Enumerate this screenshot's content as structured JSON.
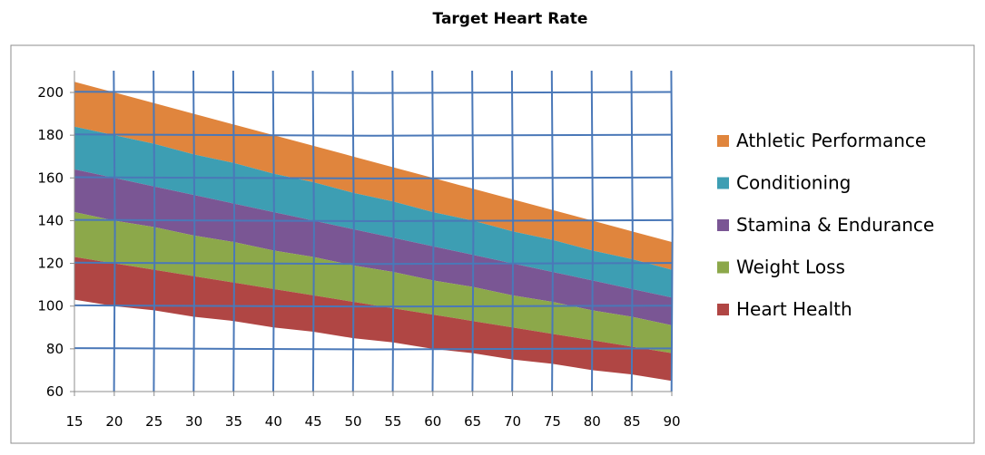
{
  "chart_data": {
    "type": "area",
    "title": "Target Heart Rate",
    "xlabel": "",
    "ylabel": "",
    "x": [
      15,
      20,
      25,
      30,
      35,
      40,
      45,
      50,
      55,
      60,
      65,
      70,
      75,
      80,
      85,
      90
    ],
    "xlim": [
      15,
      90
    ],
    "ylim": [
      60,
      210
    ],
    "yticks": [
      60,
      80,
      100,
      120,
      140,
      160,
      180,
      200
    ],
    "grid": true,
    "legend_position": "right",
    "bands": [
      {
        "name": "Athletic Performance",
        "color": "#e0853d",
        "lower": [
          184,
          180,
          176,
          171,
          167,
          162,
          158,
          153,
          149,
          144,
          140,
          135,
          131,
          126,
          122,
          117
        ],
        "upper": [
          205,
          200,
          195,
          190,
          185,
          180,
          175,
          170,
          165,
          160,
          155,
          150,
          145,
          140,
          135,
          130
        ]
      },
      {
        "name": "Conditioning",
        "color": "#3d9eb3",
        "lower": [
          164,
          160,
          156,
          152,
          148,
          144,
          140,
          136,
          132,
          128,
          124,
          120,
          116,
          112,
          108,
          104
        ],
        "upper": [
          184,
          180,
          176,
          171,
          167,
          162,
          158,
          153,
          149,
          144,
          140,
          135,
          131,
          126,
          122,
          117
        ]
      },
      {
        "name": "Stamina & Endurance",
        "color": "#7a5694",
        "lower": [
          144,
          140,
          137,
          133,
          130,
          126,
          123,
          119,
          116,
          112,
          109,
          105,
          102,
          98,
          95,
          91
        ],
        "upper": [
          164,
          160,
          156,
          152,
          148,
          144,
          140,
          136,
          132,
          128,
          124,
          120,
          116,
          112,
          108,
          104
        ]
      },
      {
        "name": "Weight Loss",
        "color": "#8ca84a",
        "lower": [
          123,
          120,
          117,
          114,
          111,
          108,
          105,
          102,
          99,
          96,
          93,
          90,
          87,
          84,
          81,
          78
        ],
        "upper": [
          144,
          140,
          137,
          133,
          130,
          126,
          123,
          119,
          116,
          112,
          109,
          105,
          102,
          98,
          95,
          91
        ]
      },
      {
        "name": "Heart Health",
        "color": "#b04644",
        "lower": [
          103,
          100,
          98,
          95,
          93,
          90,
          88,
          85,
          83,
          80,
          78,
          75,
          73,
          70,
          68,
          65
        ],
        "upper": [
          123,
          120,
          117,
          114,
          111,
          108,
          105,
          102,
          99,
          96,
          93,
          90,
          87,
          84,
          81,
          78
        ]
      }
    ],
    "grid_color": "#4a78b8"
  }
}
